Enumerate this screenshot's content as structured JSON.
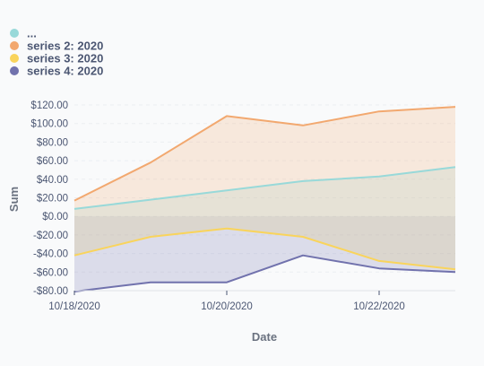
{
  "chart_data": {
    "type": "area",
    "xlabel": "Date",
    "ylabel": "Sum",
    "x": [
      "2020-10-18",
      "2020-10-19",
      "2020-10-20",
      "2020-10-21",
      "2020-10-22",
      "2020-10-23"
    ],
    "x_tick_labels": [
      "10/18/2020",
      "10/20/2020",
      "10/22/2020"
    ],
    "x_tick_values": [
      "2020-10-18",
      "2020-10-20",
      "2020-10-22"
    ],
    "ylim": [
      -80,
      120
    ],
    "y_ticks": [
      -80,
      -60,
      -40,
      -20,
      0,
      20,
      40,
      60,
      80,
      100,
      120
    ],
    "y_tick_labels": [
      "-$80.00",
      "-$60.00",
      "-$40.00",
      "-$20.00",
      "$0.00",
      "$20.00",
      "$40.00",
      "$60.00",
      "$80.00",
      "$100.00",
      "$120.00"
    ],
    "grid": true,
    "legend_position": "top-left",
    "series": [
      {
        "name": "...",
        "color": "#98d9d9",
        "values": [
          8,
          18,
          28,
          38,
          43,
          53
        ]
      },
      {
        "name": "series 2: 2020",
        "color": "#f2a86f",
        "values": [
          17,
          58,
          108,
          98,
          113,
          118
        ]
      },
      {
        "name": "series 3: 2020",
        "color": "#f9d45c",
        "values": [
          -42,
          -22,
          -13,
          -22,
          -48,
          -57
        ]
      },
      {
        "name": "series 4: 2020",
        "color": "#7172ad",
        "values": [
          -81,
          -71,
          -71,
          -42,
          -56,
          -60
        ]
      }
    ]
  }
}
